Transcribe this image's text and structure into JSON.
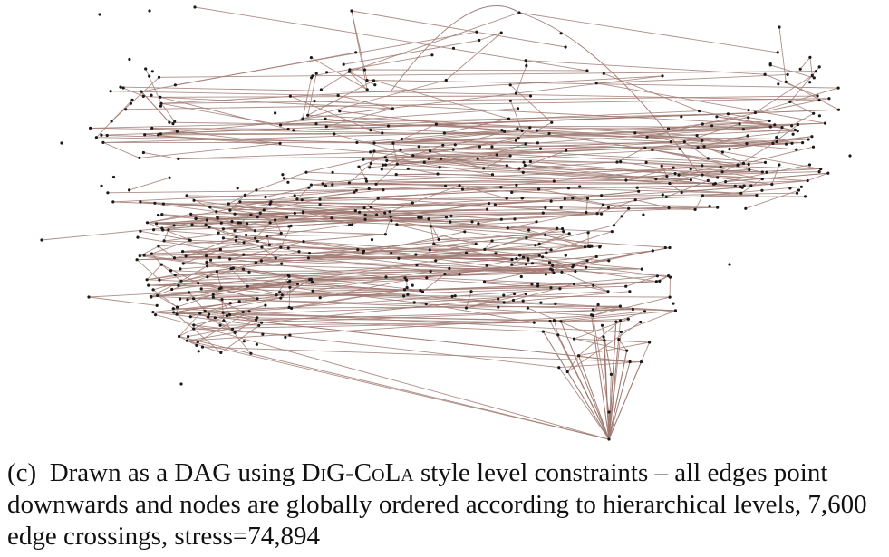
{
  "figure": {
    "edge_color": "#a07a72",
    "node_color": "#1a1a1a",
    "background": "#ffffff"
  },
  "caption": {
    "label": "(c)",
    "text_before": "Drawn as a DAG using ",
    "method_part1": "DiG",
    "method_sep": "-",
    "method_part2": "CoLa",
    "text_after": " style level constraints – all edges point downwards and nodes are globally ordered according to hierarchical levels, 7,600 edge crossings, stress=74,894"
  }
}
